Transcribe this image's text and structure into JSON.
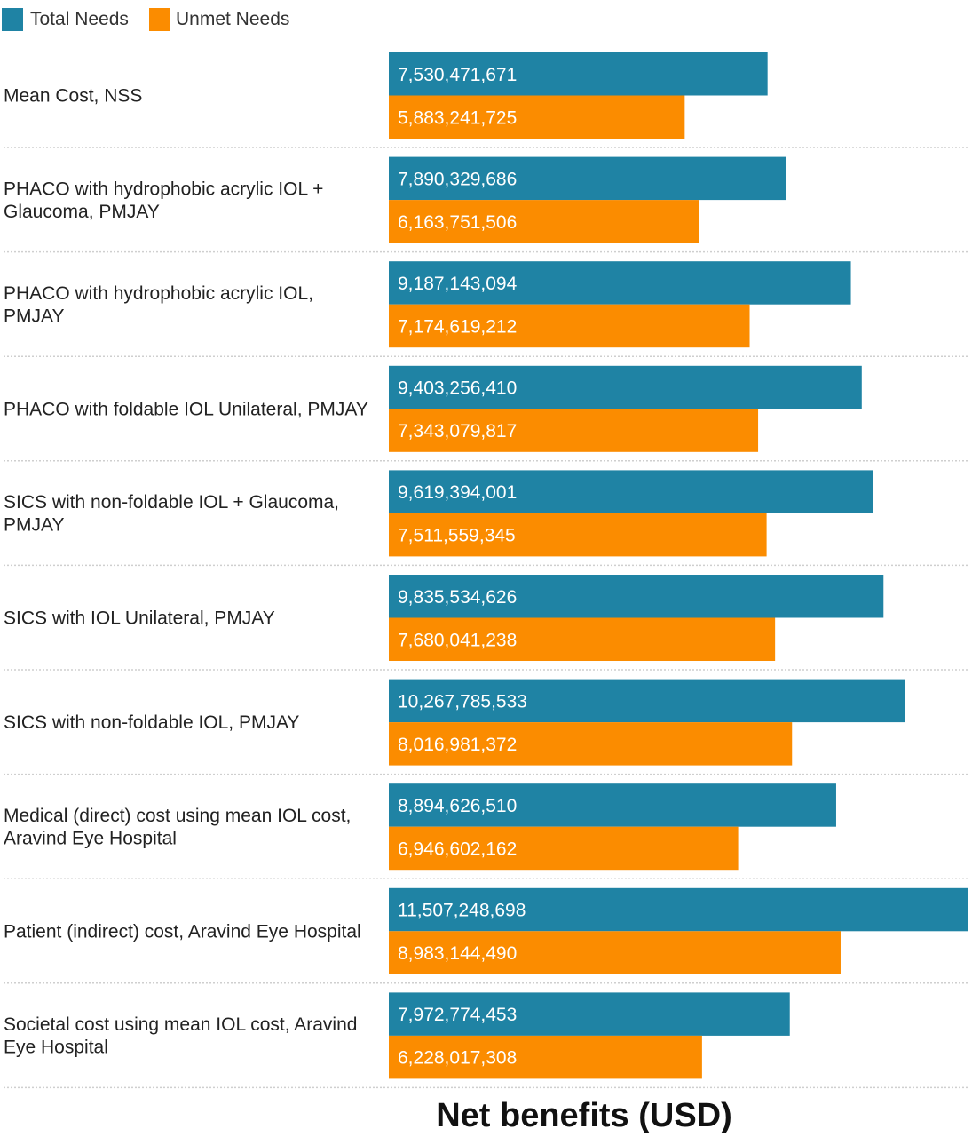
{
  "chart_data": {
    "type": "bar",
    "orientation": "horizontal",
    "categories": [
      [
        "Mean Cost, NSS"
      ],
      [
        "PHACO with hydrophobic acrylic IOL +",
        "Glaucoma, PMJAY"
      ],
      [
        "PHACO with hydrophobic acrylic IOL,",
        "PMJAY"
      ],
      [
        "PHACO with foldable IOL Unilateral, PMJAY"
      ],
      [
        "SICS with non-foldable IOL + Glaucoma,",
        "PMJAY"
      ],
      [
        "SICS with IOL Unilateral, PMJAY"
      ],
      [
        "SICS with non-foldable IOL, PMJAY"
      ],
      [
        "Medical (direct) cost using mean IOL cost,",
        "Aravind Eye Hospital"
      ],
      [
        "Patient (indirect) cost, Aravind Eye Hospital"
      ],
      [
        "Societal cost using mean IOL cost, Aravind",
        "Eye Hospital"
      ]
    ],
    "series": [
      {
        "name": "Total Needs",
        "color": "#1f83a4",
        "values": [
          7530471671,
          7890329686,
          9187143094,
          9403256410,
          9619394001,
          9835534626,
          10267785533,
          8894626510,
          11507248698,
          7972774453
        ],
        "labels": [
          "7,530,471,671",
          "7,890,329,686",
          "9,187,143,094",
          "9,403,256,410",
          "9,619,394,001",
          "9,835,534,626",
          "10,267,785,533",
          "8,894,626,510",
          "11,507,248,698",
          "7,972,774,453"
        ]
      },
      {
        "name": "Unmet Needs",
        "color": "#fb8c00",
        "values": [
          5883241725,
          6163751506,
          7174619212,
          7343079817,
          7511559345,
          7680041238,
          8016981372,
          6946602162,
          8983144490,
          6228017308
        ],
        "labels": [
          "5,883,241,725",
          "6,163,751,506",
          "7,174,619,212",
          "7,343,079,817",
          "7,511,559,345",
          "7,680,041,238",
          "8,016,981,372",
          "6,946,602,162",
          "8,983,144,490",
          "6,228,017,308"
        ]
      }
    ],
    "xlabel": "Net benefits (USD)",
    "ylabel": "",
    "xlim": [
      0,
      11507248698
    ],
    "legend": "top-left",
    "grid": false
  }
}
